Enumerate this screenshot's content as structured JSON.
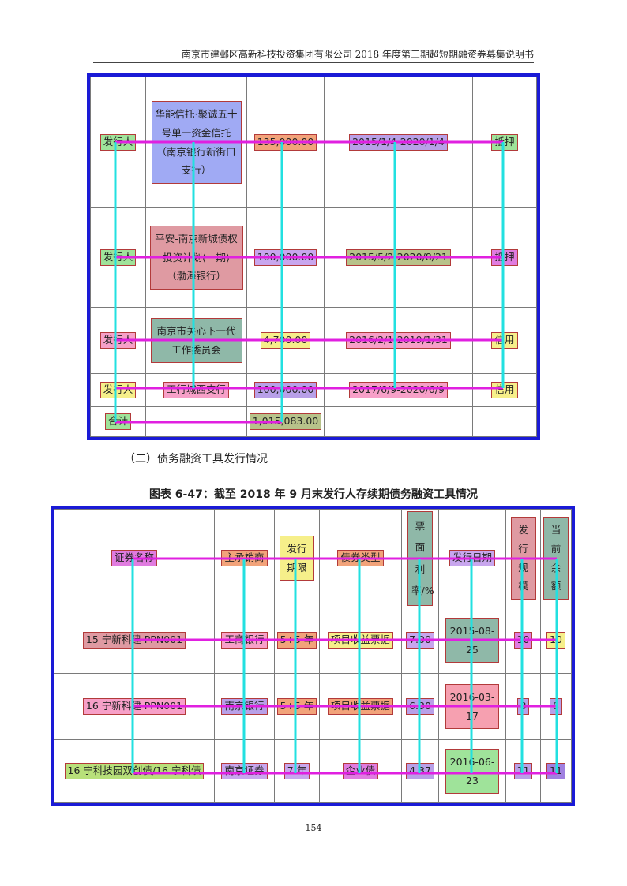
{
  "header": {
    "title": "南京市建邺区高新科技投资集团有限公司 2018 年度第三期超短期融资券募集说明书"
  },
  "table1": {
    "rows": [
      {
        "borrower": "发行人",
        "lender": "华能信托·聚诚五十号单一资金信托（南京银行新街口支行）",
        "amount": "135,000.00",
        "term": "2015/1/4-2020/1/4",
        "guarantee": "抵押"
      },
      {
        "borrower": "发行人",
        "lender": "平安-南京新城债权投资计划(一期)（渤海银行）",
        "amount": "100,000.00",
        "term": "2015/5/2-2020/8/21",
        "guarantee": "抵押"
      },
      {
        "borrower": "发行人",
        "lender": "南京市关心下一代工作委员会",
        "amount": "4,700.00",
        "term": "2016/2/1-2019/1/31",
        "guarantee": "信用"
      },
      {
        "borrower": "发行人",
        "lender": "工行城西支行",
        "amount": "100,000.00",
        "term": "2017/6/9-2020/6/9",
        "guarantee": "信用"
      }
    ],
    "total_label": "合计",
    "total_amount": "1,015,083.00"
  },
  "section_title": "（二）债务融资工具发行情况",
  "caption": "图表 6-47：截至 2018 年 9 月末发行人存续期债务融资工具情况",
  "table2": {
    "headers": {
      "name": "证券名称",
      "underwriter": "主承销商",
      "term": "发行期限",
      "type": "债券类型",
      "rate": "票面利率/%",
      "date": "发行日期",
      "scale": "发行规模",
      "balance": "当前余额"
    },
    "rows": [
      {
        "name": "15 宁新科建 PPN001",
        "underwriter": "工商银行",
        "term": "5+5 年",
        "type": "项目收益票据",
        "rate": "7.00",
        "date": "2015-08-25",
        "scale": "10",
        "balance": "10"
      },
      {
        "name": "16 宁新科建 PPN001",
        "underwriter": "南京银行",
        "term": "5+5 年",
        "type": "项目收益票据",
        "rate": "6.30",
        "date": "2016-03-17",
        "scale": "8",
        "balance": "8"
      },
      {
        "name": "16 宁科技园双创债/16 宁科债",
        "underwriter": "南京证券",
        "term": "7 年",
        "type": "企业债",
        "rate": "4.37",
        "date": "2016-06-23",
        "scale": "11",
        "balance": "11"
      }
    ]
  },
  "page_number": "154",
  "colors": {
    "frame_border": "#1a1ad6",
    "overlay_horizontal": "#e020e0",
    "overlay_vertical": "#22e0e0"
  }
}
